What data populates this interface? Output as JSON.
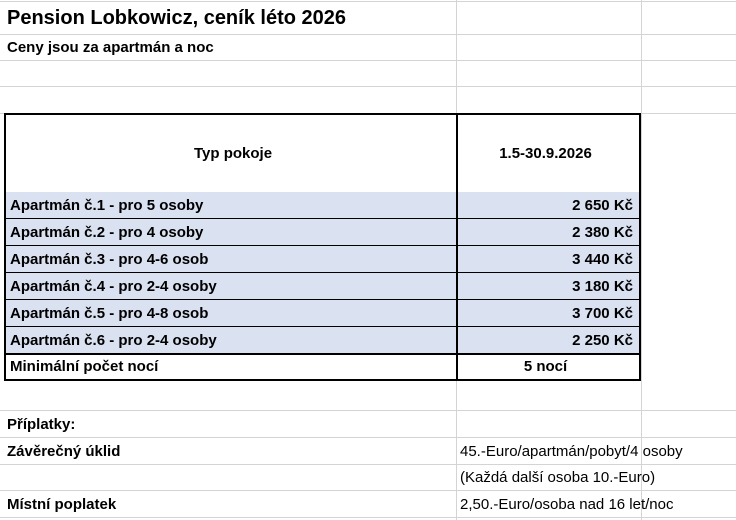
{
  "title": "Pension Lobkowicz, ceník léto 2026",
  "subtitle": "Ceny jsou za apartmán a noc",
  "table": {
    "header": {
      "type": "Typ pokoje",
      "period": "1.5-30.9.2026"
    },
    "rows": [
      {
        "name": "Apartmán č.1 - pro 5 osoby",
        "price": "2 650 Kč"
      },
      {
        "name": "Apartmán č.2 - pro 4 osoby",
        "price": "2 380 Kč"
      },
      {
        "name": "Apartmán č.3 - pro 4-6 osob",
        "price": "3 440 Kč"
      },
      {
        "name": "Apartmán č.4 - pro 2-4 osoby",
        "price": "3 180 Kč"
      },
      {
        "name": "Apartmán č.5 - pro 4-8 osob",
        "price": "3 700 Kč"
      },
      {
        "name": "Apartmán č.6 - pro 2-4 osoby",
        "price": "2 250 Kč"
      }
    ],
    "min_nights": {
      "label": "Minimální počet nocí",
      "value": "5 nocí"
    },
    "row_shade_color": "#dae1f1"
  },
  "surcharges": {
    "heading": "Příplatky:",
    "cleaning_label": "Závěrečný úklid",
    "cleaning_value": "45.-Euro/apartmán/pobyt/4 osoby",
    "cleaning_note": "(Každá další osoba 10.-Euro)",
    "local_fee_label": "Místní poplatek",
    "local_fee_value": "2,50.-Euro/osoba nad 16 let/noc"
  }
}
